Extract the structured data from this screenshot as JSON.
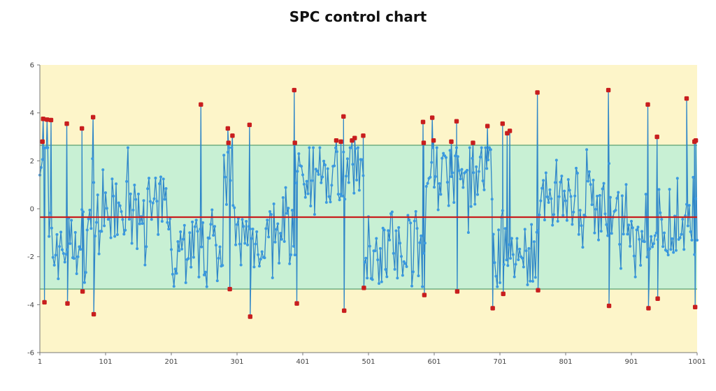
{
  "chart_data": {
    "type": "line",
    "title": "SPC control chart",
    "xlabel": "",
    "ylabel": "",
    "xlim": [
      1,
      1001
    ],
    "ylim": [
      -6,
      6
    ],
    "x_ticks": [
      "1",
      "101",
      "201",
      "301",
      "401",
      "501",
      "601",
      "701",
      "801",
      "901",
      "1001"
    ],
    "y_ticks": [
      "6",
      "4",
      "2",
      "0",
      "-2",
      "-4",
      "-6"
    ],
    "mean_line": -0.35,
    "ucl": 2.65,
    "lcl": -3.35,
    "grid": false,
    "colors": {
      "plot_bg": "#fdf5c9",
      "control_band": "#c8f0d4",
      "control_limit": "#5aa070",
      "mean_line": "#c81e1e",
      "series_line": "#2f86c8",
      "series_point": "#3b9ae0",
      "out_of_control": "#c81e1e"
    },
    "segments": [
      {
        "from": 1,
        "to": 15,
        "level": 2.2
      },
      {
        "from": 15,
        "to": 75,
        "level": -1.5
      },
      {
        "from": 75,
        "to": 200,
        "level": -0.2
      },
      {
        "from": 200,
        "to": 280,
        "level": -1.5
      },
      {
        "from": 280,
        "to": 295,
        "level": 2.0
      },
      {
        "from": 295,
        "to": 390,
        "level": -1.2
      },
      {
        "from": 390,
        "to": 495,
        "level": 1.5
      },
      {
        "from": 495,
        "to": 590,
        "level": -1.5
      },
      {
        "from": 590,
        "to": 690,
        "level": 1.4
      },
      {
        "from": 690,
        "to": 760,
        "level": -1.8
      },
      {
        "from": 760,
        "to": 870,
        "level": 0.1
      },
      {
        "from": 870,
        "to": 1001,
        "level": -0.8
      }
    ],
    "out_of_control_points": [
      {
        "x": 5,
        "y": 2.8
      },
      {
        "x": 6,
        "y": 3.75
      },
      {
        "x": 12,
        "y": 3.72
      },
      {
        "x": 18,
        "y": 3.7
      },
      {
        "x": 8,
        "y": -3.9
      },
      {
        "x": 42,
        "y": 3.55
      },
      {
        "x": 43,
        "y": -3.95
      },
      {
        "x": 65,
        "y": 3.35
      },
      {
        "x": 66,
        "y": -3.45
      },
      {
        "x": 82,
        "y": 3.82
      },
      {
        "x": 83,
        "y": -4.4
      },
      {
        "x": 246,
        "y": 4.35
      },
      {
        "x": 287,
        "y": 3.35
      },
      {
        "x": 288,
        "y": 2.75
      },
      {
        "x": 290,
        "y": -3.35
      },
      {
        "x": 294,
        "y": 3.05
      },
      {
        "x": 320,
        "y": 3.5
      },
      {
        "x": 321,
        "y": -4.5
      },
      {
        "x": 388,
        "y": 4.95
      },
      {
        "x": 389,
        "y": 2.75
      },
      {
        "x": 392,
        "y": -3.95
      },
      {
        "x": 452,
        "y": 2.85
      },
      {
        "x": 459,
        "y": 2.8
      },
      {
        "x": 463,
        "y": 3.85
      },
      {
        "x": 464,
        "y": -4.25
      },
      {
        "x": 476,
        "y": 2.85
      },
      {
        "x": 480,
        "y": 2.95
      },
      {
        "x": 493,
        "y": 3.05
      },
      {
        "x": 494,
        "y": -3.3
      },
      {
        "x": 584,
        "y": 3.62
      },
      {
        "x": 585,
        "y": 2.75
      },
      {
        "x": 586,
        "y": -3.6
      },
      {
        "x": 598,
        "y": 3.8
      },
      {
        "x": 600,
        "y": 2.85
      },
      {
        "x": 627,
        "y": 2.8
      },
      {
        "x": 635,
        "y": 3.65
      },
      {
        "x": 636,
        "y": -3.45
      },
      {
        "x": 660,
        "y": 2.75
      },
      {
        "x": 682,
        "y": 3.45
      },
      {
        "x": 690,
        "y": -4.15
      },
      {
        "x": 705,
        "y": 3.55
      },
      {
        "x": 706,
        "y": -3.55
      },
      {
        "x": 712,
        "y": 3.15
      },
      {
        "x": 716,
        "y": 3.25
      },
      {
        "x": 758,
        "y": 4.85
      },
      {
        "x": 759,
        "y": -3.4
      },
      {
        "x": 866,
        "y": 4.95
      },
      {
        "x": 867,
        "y": -4.05
      },
      {
        "x": 926,
        "y": 4.35
      },
      {
        "x": 927,
        "y": -4.15
      },
      {
        "x": 940,
        "y": 3.0
      },
      {
        "x": 941,
        "y": -3.75
      },
      {
        "x": 985,
        "y": 4.6
      },
      {
        "x": 997,
        "y": 2.8
      },
      {
        "x": 999,
        "y": 2.85
      },
      {
        "x": 998,
        "y": -4.1
      }
    ]
  }
}
